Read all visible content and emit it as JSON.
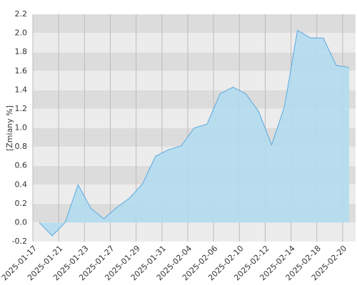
{
  "chart_data": {
    "type": "area",
    "y_label": "[Zmiany %]",
    "categories": [
      "2025-01-17",
      null,
      "2025-01-21",
      null,
      "2025-01-23",
      null,
      "2025-01-27",
      null,
      "2025-01-29",
      null,
      "2025-01-31",
      null,
      "2025-02-04",
      null,
      "2025-02-06",
      null,
      "2025-02-10",
      null,
      "2025-02-12",
      null,
      "2025-02-14",
      null,
      "2025-02-18",
      null,
      "2025-02-20"
    ],
    "values": [
      0.0,
      -0.14,
      0.0,
      0.4,
      0.15,
      0.04,
      0.16,
      0.26,
      0.41,
      0.7,
      0.77,
      0.81,
      1.0,
      1.04,
      1.36,
      1.43,
      1.36,
      1.17,
      0.82,
      1.23,
      2.03,
      1.95,
      1.95,
      1.66,
      1.64
    ],
    "color": "#5aa8e0",
    "fill": "#b3dcef",
    "ylim": [
      -0.2,
      2.2
    ],
    "yticks": [
      -0.2,
      {
        "value": 0,
        "label": "0.0"
      },
      0.2,
      0.4,
      0.6,
      0.8,
      {
        "value": 1,
        "label": "1.0"
      },
      1.2,
      1.4,
      1.6,
      1.8,
      {
        "value": 2,
        "label": "2.0"
      },
      2.2
    ],
    "grid": true
  }
}
